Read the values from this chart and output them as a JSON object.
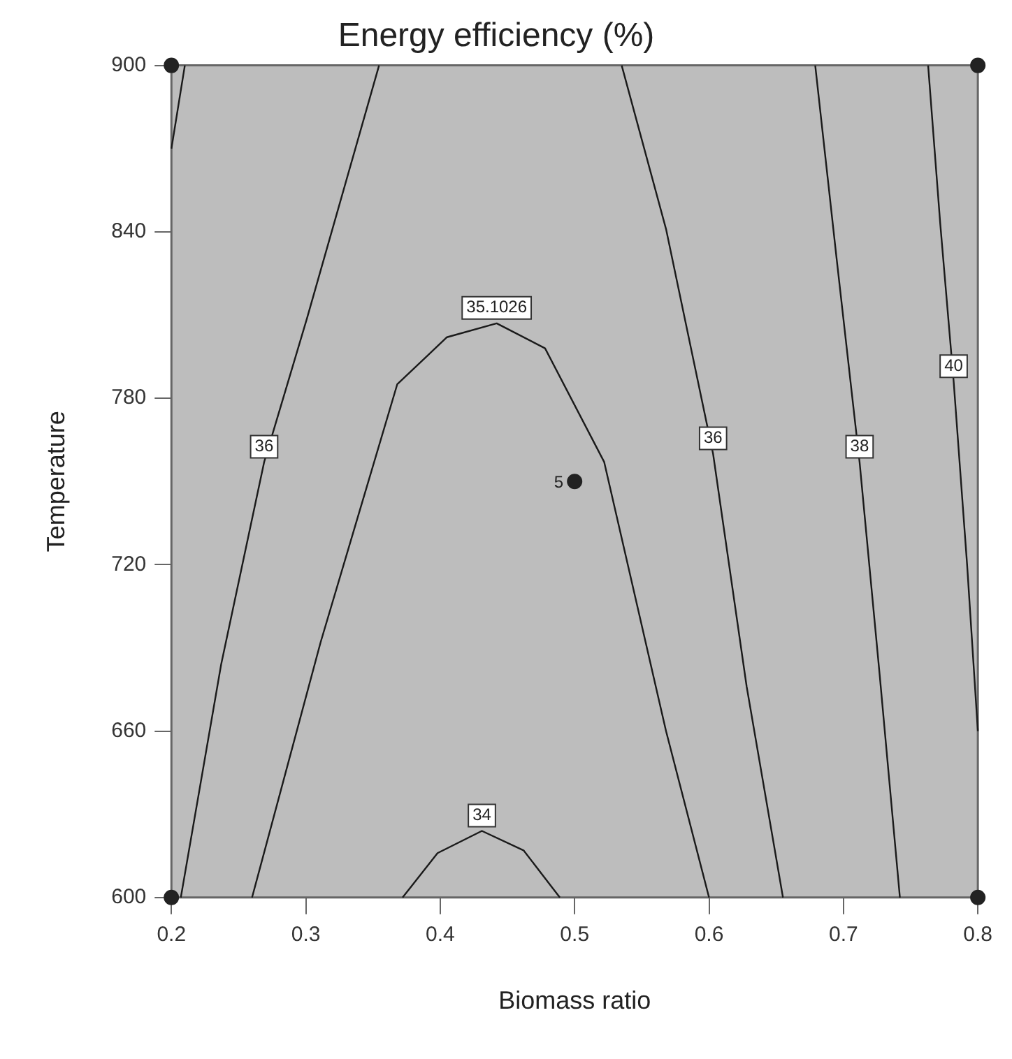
{
  "chart_data": {
    "type": "line",
    "title": "Energy efficiency (%)",
    "xlabel": "Biomass ratio",
    "ylabel": "Temperature",
    "xlim": [
      0.2,
      0.8
    ],
    "xticks": [
      0.2,
      0.3,
      0.4,
      0.5,
      0.6,
      0.7,
      0.8
    ],
    "ylim": [
      600,
      900
    ],
    "yticks": [
      600,
      660,
      720,
      780,
      840,
      900
    ],
    "marker": "none",
    "line_style": "solid",
    "series": [
      {
        "color": "#1a1a1a",
        "x": [
          0.21,
          0.2
        ],
        "values": [
          900,
          870
        ]
      },
      {
        "name": "36",
        "color": "#1a1a1a",
        "x": [
          0.207,
          0.237,
          0.269,
          0.301,
          0.3545
        ],
        "values": [
          600,
          684,
          757,
          809,
          900
        ]
      },
      {
        "name": "35.1026",
        "color": "#1a1a1a",
        "x": [
          0.26,
          0.311,
          0.368,
          0.405,
          0.442,
          0.478,
          0.522,
          0.568,
          0.6
        ],
        "values": [
          600,
          692,
          785,
          802,
          807,
          798,
          757,
          660,
          600
        ]
      },
      {
        "name": "34",
        "color": "#1a1a1a",
        "x": [
          0.372,
          0.398,
          0.431,
          0.462,
          0.489
        ],
        "values": [
          600,
          616,
          624,
          617,
          600
        ]
      },
      {
        "name": "36",
        "color": "#1a1a1a",
        "x": [
          0.535,
          0.568,
          0.603,
          0.628,
          0.655
        ],
        "values": [
          900,
          841,
          760,
          676,
          600
        ]
      },
      {
        "name": "38",
        "color": "#1a1a1a",
        "x": [
          0.679,
          0.695,
          0.712,
          0.727,
          0.742
        ],
        "values": [
          900,
          830,
          757,
          680,
          600
        ]
      },
      {
        "name": "40",
        "color": "#1a1a1a",
        "x": [
          0.763,
          0.772,
          0.782,
          0.792,
          0.8
        ],
        "values": [
          900,
          843,
          786,
          720,
          660
        ]
      },
      {
        "type": "scatter",
        "marker": "circle",
        "color": "#222222",
        "x": [
          0.2,
          0.2,
          0.8,
          0.8,
          0.5
        ],
        "values": [
          600,
          900,
          600,
          900,
          750
        ]
      }
    ],
    "annotations": [
      {
        "text": "5",
        "x": 0.5,
        "y": 750
      }
    ]
  }
}
